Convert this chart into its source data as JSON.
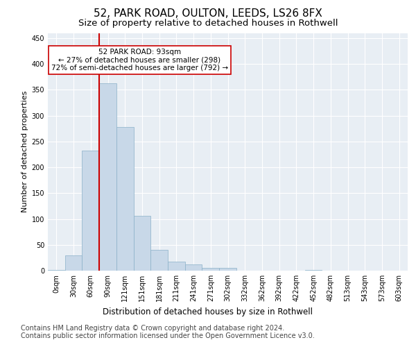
{
  "title1": "52, PARK ROAD, OULTON, LEEDS, LS26 8FX",
  "title2": "Size of property relative to detached houses in Rothwell",
  "xlabel": "Distribution of detached houses by size in Rothwell",
  "ylabel": "Number of detached properties",
  "bin_labels": [
    "0sqm",
    "30sqm",
    "60sqm",
    "90sqm",
    "121sqm",
    "151sqm",
    "181sqm",
    "211sqm",
    "241sqm",
    "271sqm",
    "302sqm",
    "332sqm",
    "362sqm",
    "392sqm",
    "422sqm",
    "452sqm",
    "482sqm",
    "513sqm",
    "543sqm",
    "573sqm",
    "603sqm"
  ],
  "bar_values": [
    2,
    30,
    233,
    363,
    278,
    106,
    40,
    18,
    12,
    6,
    5,
    0,
    0,
    0,
    0,
    1,
    0,
    0,
    0,
    0,
    0
  ],
  "bar_color": "#c8d8e8",
  "bar_edge_color": "#8ab0c8",
  "vline_bin_index": 3,
  "vline_color": "#cc0000",
  "annotation_text": "52 PARK ROAD: 93sqm\n← 27% of detached houses are smaller (298)\n72% of semi-detached houses are larger (792) →",
  "annotation_box_color": "#ffffff",
  "annotation_box_edge": "#cc0000",
  "ylim": [
    0,
    460
  ],
  "yticks": [
    0,
    50,
    100,
    150,
    200,
    250,
    300,
    350,
    400,
    450
  ],
  "plot_bg_color": "#e8eef4",
  "footer1": "Contains HM Land Registry data © Crown copyright and database right 2024.",
  "footer2": "Contains public sector information licensed under the Open Government Licence v3.0.",
  "title1_fontsize": 11,
  "title2_fontsize": 9.5,
  "xlabel_fontsize": 8.5,
  "ylabel_fontsize": 8,
  "tick_fontsize": 7,
  "footer_fontsize": 7,
  "annotation_fontsize": 7.5
}
